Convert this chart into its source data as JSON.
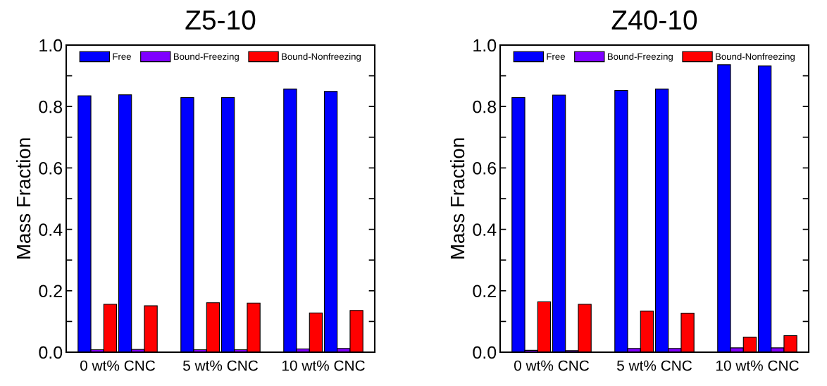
{
  "chart_data": [
    {
      "type": "bar",
      "title": "Z5-10",
      "ylabel": "Mass Fraction",
      "categories": [
        "0 wt% CNC",
        "5 wt% CNC",
        "10 wt% CNC"
      ],
      "ylim": [
        0,
        1.0
      ],
      "yticks": [
        {
          "value": 0,
          "label": "0.0"
        },
        {
          "value": 0.1,
          "label": null
        },
        {
          "value": 0.2,
          "label": "0.2"
        },
        {
          "value": 0.3,
          "label": null
        },
        {
          "value": 0.4,
          "label": "0.4"
        },
        {
          "value": 0.5,
          "label": null
        },
        {
          "value": 0.6,
          "label": "0.6"
        },
        {
          "value": 0.7,
          "label": null
        },
        {
          "value": 0.8,
          "label": "0.8"
        },
        {
          "value": 0.9,
          "label": null
        },
        {
          "value": 1.0,
          "label": "1.0"
        }
      ],
      "legend": "top",
      "grid": false,
      "series": [
        {
          "name": "Free",
          "color": "#0000ff",
          "values": [
            0.835,
            0.829,
            0.857
          ]
        },
        {
          "name": "Bound-Freezing",
          "color": "#7f00ff",
          "values": [
            0.008,
            0.008,
            0.011
          ]
        },
        {
          "name": "Bound-Nonfreezing",
          "color": "#ff0000",
          "values": [
            0.156,
            0.161,
            0.128
          ]
        },
        {
          "color": "#0000ff",
          "values": [
            0.838,
            0.829,
            0.849
          ]
        },
        {
          "color": "#7f00ff",
          "values": [
            0.009,
            0.008,
            0.012
          ]
        },
        {
          "color": "#ff0000",
          "values": [
            0.151,
            0.16,
            0.136
          ]
        }
      ]
    },
    {
      "type": "bar",
      "title": "Z40-10",
      "ylabel": "Mass Fraction",
      "categories": [
        "0 wt% CNC",
        "5 wt% CNC",
        "10 wt% CNC"
      ],
      "ylim": [
        0,
        1.0
      ],
      "yticks": [
        {
          "value": 0,
          "label": "0.0"
        },
        {
          "value": 0.1,
          "label": null
        },
        {
          "value": 0.2,
          "label": "0.2"
        },
        {
          "value": 0.3,
          "label": null
        },
        {
          "value": 0.4,
          "label": "0.4"
        },
        {
          "value": 0.5,
          "label": null
        },
        {
          "value": 0.6,
          "label": "0.6"
        },
        {
          "value": 0.7,
          "label": null
        },
        {
          "value": 0.8,
          "label": "0.8"
        },
        {
          "value": 0.9,
          "label": null
        },
        {
          "value": 1.0,
          "label": "1.0"
        }
      ],
      "legend": "top",
      "grid": false,
      "series": [
        {
          "name": "Free",
          "color": "#0000ff",
          "values": [
            0.829,
            0.852,
            0.936
          ]
        },
        {
          "name": "Bound-Freezing",
          "color": "#7f00ff",
          "values": [
            0.006,
            0.012,
            0.014
          ]
        },
        {
          "name": "Bound-Nonfreezing",
          "color": "#ff0000",
          "values": [
            0.164,
            0.134,
            0.049
          ]
        },
        {
          "color": "#0000ff",
          "values": [
            0.837,
            0.857,
            0.932
          ]
        },
        {
          "color": "#7f00ff",
          "values": [
            0.005,
            0.012,
            0.014
          ]
        },
        {
          "color": "#ff0000",
          "values": [
            0.156,
            0.127,
            0.054
          ]
        }
      ]
    }
  ]
}
